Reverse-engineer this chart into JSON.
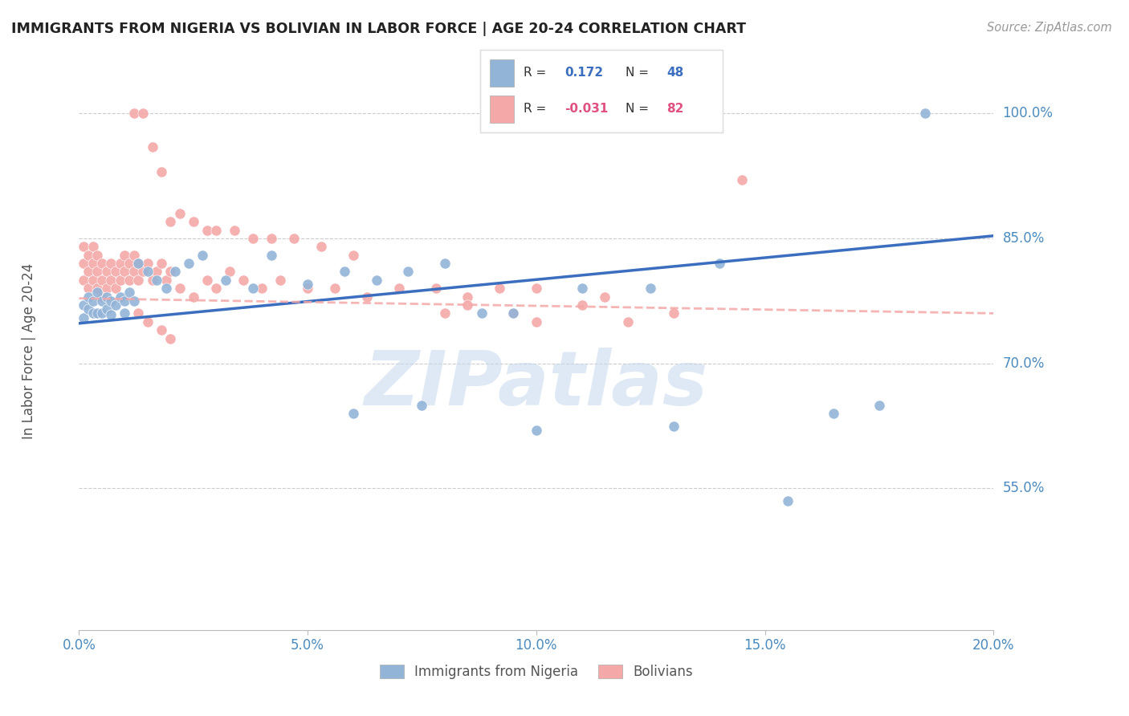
{
  "title": "IMMIGRANTS FROM NIGERIA VS BOLIVIAN IN LABOR FORCE | AGE 20-24 CORRELATION CHART",
  "source": "Source: ZipAtlas.com",
  "ylabel": "In Labor Force | Age 20-24",
  "xmin": 0.0,
  "xmax": 0.2,
  "ymin": 0.38,
  "ymax": 1.05,
  "blue_R": 0.172,
  "blue_N": 48,
  "pink_R": -0.031,
  "pink_N": 82,
  "blue_color": "#92B4D7",
  "pink_color": "#F4A8A8",
  "blue_line_color": "#3B6EBF",
  "pink_line_color": "#F4A8A8",
  "bg_color": "#FFFFFF",
  "grid_color": "#CCCCCC",
  "axis_color": "#4B8BBE",
  "title_color": "#222222",
  "watermark": "ZIPatlas",
  "nigeria_label": "Immigrants from Nigeria",
  "bolivia_label": "Bolivians",
  "blue_line_y0": 0.748,
  "blue_line_y1": 0.853,
  "pink_line_y0": 0.778,
  "pink_line_y1": 0.76,
  "ytick_vals": [
    0.55,
    0.7,
    0.85,
    1.0
  ],
  "ytick_labels": [
    "55.0%",
    "70.0%",
    "85.0%",
    "100.0%"
  ],
  "xtick_vals": [
    0.0,
    0.05,
    0.1,
    0.15,
    0.2
  ],
  "xtick_labels": [
    "0.0%",
    "5.0%",
    "10.0%",
    "15.0%",
    "20.0%"
  ],
  "nigeria_x": [
    0.001,
    0.001,
    0.002,
    0.002,
    0.003,
    0.003,
    0.004,
    0.004,
    0.005,
    0.005,
    0.006,
    0.006,
    0.007,
    0.007,
    0.008,
    0.009,
    0.01,
    0.01,
    0.011,
    0.012,
    0.013,
    0.015,
    0.017,
    0.019,
    0.021,
    0.024,
    0.027,
    0.032,
    0.038,
    0.042,
    0.05,
    0.058,
    0.065,
    0.072,
    0.08,
    0.088,
    0.095,
    0.11,
    0.125,
    0.14,
    0.06,
    0.075,
    0.1,
    0.13,
    0.155,
    0.165,
    0.175,
    0.185
  ],
  "nigeria_y": [
    0.77,
    0.755,
    0.78,
    0.765,
    0.76,
    0.775,
    0.785,
    0.76,
    0.775,
    0.76,
    0.78,
    0.765,
    0.775,
    0.758,
    0.77,
    0.78,
    0.775,
    0.76,
    0.785,
    0.775,
    0.82,
    0.81,
    0.8,
    0.79,
    0.81,
    0.82,
    0.83,
    0.8,
    0.79,
    0.83,
    0.795,
    0.81,
    0.8,
    0.81,
    0.82,
    0.76,
    0.76,
    0.79,
    0.79,
    0.82,
    0.64,
    0.65,
    0.62,
    0.625,
    0.535,
    0.64,
    0.65,
    1.0
  ],
  "bolivia_x": [
    0.001,
    0.001,
    0.001,
    0.002,
    0.002,
    0.002,
    0.003,
    0.003,
    0.003,
    0.004,
    0.004,
    0.004,
    0.005,
    0.005,
    0.005,
    0.006,
    0.006,
    0.007,
    0.007,
    0.008,
    0.008,
    0.009,
    0.009,
    0.01,
    0.01,
    0.011,
    0.011,
    0.012,
    0.012,
    0.013,
    0.013,
    0.014,
    0.015,
    0.016,
    0.017,
    0.018,
    0.019,
    0.02,
    0.022,
    0.025,
    0.028,
    0.03,
    0.033,
    0.036,
    0.04,
    0.044,
    0.05,
    0.056,
    0.063,
    0.07,
    0.078,
    0.085,
    0.092,
    0.1,
    0.115,
    0.012,
    0.014,
    0.016,
    0.018,
    0.02,
    0.022,
    0.025,
    0.028,
    0.03,
    0.034,
    0.038,
    0.042,
    0.047,
    0.053,
    0.06,
    0.013,
    0.015,
    0.018,
    0.02,
    0.08,
    0.1,
    0.12,
    0.095,
    0.13,
    0.085,
    0.11,
    0.145
  ],
  "bolivia_y": [
    0.8,
    0.82,
    0.84,
    0.79,
    0.81,
    0.83,
    0.8,
    0.82,
    0.84,
    0.79,
    0.81,
    0.83,
    0.8,
    0.78,
    0.82,
    0.81,
    0.79,
    0.82,
    0.8,
    0.81,
    0.79,
    0.82,
    0.8,
    0.83,
    0.81,
    0.82,
    0.8,
    0.81,
    0.83,
    0.82,
    0.8,
    0.81,
    0.82,
    0.8,
    0.81,
    0.82,
    0.8,
    0.81,
    0.79,
    0.78,
    0.8,
    0.79,
    0.81,
    0.8,
    0.79,
    0.8,
    0.79,
    0.79,
    0.78,
    0.79,
    0.79,
    0.78,
    0.79,
    0.79,
    0.78,
    1.0,
    1.0,
    0.96,
    0.93,
    0.87,
    0.88,
    0.87,
    0.86,
    0.86,
    0.86,
    0.85,
    0.85,
    0.85,
    0.84,
    0.83,
    0.76,
    0.75,
    0.74,
    0.73,
    0.76,
    0.75,
    0.75,
    0.76,
    0.76,
    0.77,
    0.77,
    0.92
  ]
}
